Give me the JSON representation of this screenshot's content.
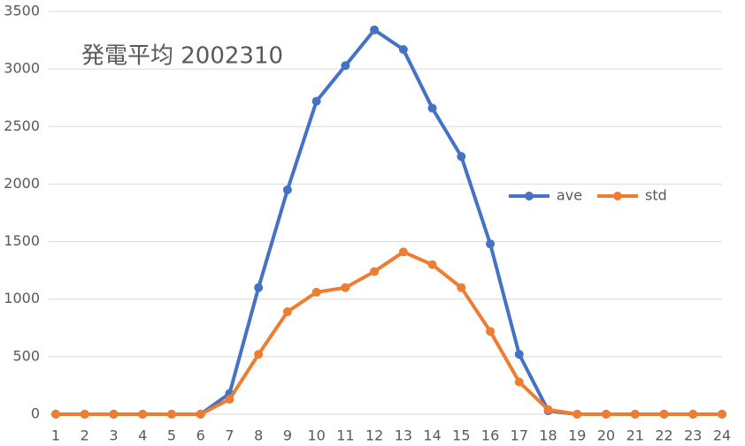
{
  "chart_data": {
    "type": "line",
    "title": "発電平均 2002310",
    "categories": [
      "1",
      "2",
      "3",
      "4",
      "5",
      "6",
      "7",
      "8",
      "9",
      "10",
      "11",
      "12",
      "13",
      "14",
      "15",
      "16",
      "17",
      "18",
      "19",
      "20",
      "21",
      "22",
      "23",
      "24"
    ],
    "series": [
      {
        "name": "ave",
        "color": "#4472c4",
        "values": [
          0,
          0,
          0,
          0,
          0,
          0,
          180,
          1100,
          1950,
          2720,
          3030,
          3340,
          3170,
          2660,
          2240,
          1480,
          520,
          30,
          0,
          0,
          0,
          0,
          0,
          0
        ]
      },
      {
        "name": "std",
        "color": "#ed7d31",
        "values": [
          0,
          0,
          0,
          0,
          0,
          0,
          130,
          520,
          890,
          1060,
          1100,
          1240,
          1410,
          1300,
          1100,
          720,
          280,
          40,
          0,
          0,
          0,
          0,
          0,
          0
        ]
      }
    ],
    "ylim": [
      0,
      3500
    ],
    "yticks": [
      0,
      500,
      1000,
      1500,
      2000,
      2500,
      3000,
      3500
    ],
    "grid": true,
    "legend": "right"
  }
}
